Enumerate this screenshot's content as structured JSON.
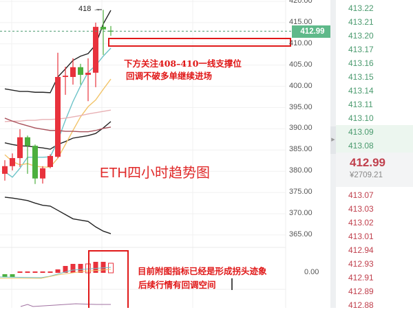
{
  "chart": {
    "title_annotation": "ETH四小时趋势图",
    "high_marker": "418 →",
    "note_support": [
      "下方关注408–410一线支撑位",
      "回调不破多单继续进场"
    ],
    "note_indicator": [
      "目前附图指标已经是形成拐头迹象",
      "后续行情有回调空间"
    ],
    "price_axis": [
      "420.00",
      "415.00",
      "410.00",
      "405.00",
      "400.00",
      "395.00",
      "390.00",
      "385.00",
      "380.00",
      "375.00",
      "370.00",
      "365.00"
    ],
    "indicator_axis": "0.00",
    "last_price_tag": "412.99",
    "last_price": 412.99,
    "colors": {
      "up": "#e8323c",
      "down": "#4caf3e",
      "last_price": "#5fb98a",
      "annotation": "#e01818"
    },
    "candles": [
      [
        379.4,
        382.6,
        377.8,
        381.2
      ],
      [
        381.2,
        384.2,
        380.2,
        383.1
      ],
      [
        383.1,
        389.9,
        381.0,
        388.0
      ],
      [
        388.0,
        388.4,
        379.4,
        386.0
      ],
      [
        386.0,
        386.3,
        377.0,
        378.3
      ],
      [
        378.3,
        381.2,
        377.1,
        380.7
      ],
      [
        381.0,
        384.0,
        380.7,
        383.6
      ],
      [
        383.4,
        407.9,
        383.1,
        402.2
      ],
      [
        402.2,
        404.6,
        398.0,
        402.5
      ],
      [
        402.2,
        406.6,
        400.4,
        404.5
      ],
      [
        404.5,
        405.3,
        400.4,
        402.7
      ],
      [
        402.7,
        406.6,
        396.5,
        403.2
      ],
      [
        403.2,
        415.0,
        399.8,
        414.0
      ],
      [
        414.0,
        418.0,
        407.4,
        413.4
      ],
      [
        413.1,
        414.2,
        411.9,
        412.99
      ]
    ],
    "lines": [
      {
        "color": "#222222",
        "values": [
          399.4,
          399.1,
          398.8,
          398.8,
          398.6,
          398.6,
          398.5,
          402.2,
          404.1,
          406.1,
          407.1,
          407.7,
          409.8,
          414.7,
          417.9
        ]
      },
      {
        "color": "#222222",
        "values": [
          386.7,
          386.3,
          386.0,
          385.9,
          385.7,
          385.5,
          385.2,
          386.3,
          387.0,
          387.8,
          388.1,
          388.4,
          388.9,
          390.2,
          391.7
        ]
      },
      {
        "color": "#222222",
        "values": [
          373.9,
          373.7,
          373.4,
          373.1,
          372.5,
          372.0,
          371.8,
          370.8,
          369.8,
          368.8,
          368.5,
          368.2,
          366.9,
          365.9,
          365.3
        ]
      },
      {
        "color": "#6cc3c8",
        "values": [
          379.9,
          378.6,
          380.7,
          383.3,
          383.3,
          383.3,
          383.4,
          387.2,
          392.0,
          396.4,
          400.1,
          403.3,
          404.9,
          407.1,
          409.0
        ]
      },
      {
        "color": "#f2c46a",
        "values": [
          383.9,
          382.3,
          381.5,
          381.8,
          381.2,
          381.0,
          381.0,
          383.1,
          386.3,
          389.6,
          392.8,
          395.2,
          396.8,
          399.3,
          401.7
        ]
      },
      {
        "color": "#e8b0b4",
        "values": [
          391.7,
          391.8,
          391.8,
          392.0,
          392.0,
          392.2,
          392.2,
          392.3,
          392.5,
          392.8,
          393.1,
          393.5,
          393.8,
          394.1,
          394.4
        ]
      },
      {
        "color": "#a8505a",
        "values": [
          392.5,
          391.8,
          391.2,
          390.7,
          390.2,
          389.9,
          389.6,
          389.6,
          389.4,
          389.4,
          389.3,
          389.3,
          389.6,
          390.1,
          390.4
        ]
      }
    ],
    "histogram": [
      -0.4,
      -0.4,
      0.1,
      0.1,
      0.1,
      0.1,
      0.1,
      0.5,
      1.0,
      1.3,
      1.3,
      1.3,
      1.6,
      1.6,
      1.4
    ],
    "histogram_hollow": [
      false,
      false,
      false,
      false,
      false,
      false,
      false,
      false,
      false,
      false,
      false,
      true,
      false,
      false,
      true
    ]
  },
  "order_book": {
    "asks": [
      "413.22",
      "413.21",
      "413.20",
      "413.17",
      "413.16",
      "413.15",
      "413.14",
      "413.11",
      "413.10",
      "413.09",
      "413.08"
    ],
    "current_price": "412.99",
    "current_price_cny": "¥2709.21",
    "bids": [
      "413.07",
      "413.03",
      "413.02",
      "413.01",
      "412.94",
      "412.93",
      "412.91",
      "412.89",
      "412.88"
    ]
  }
}
